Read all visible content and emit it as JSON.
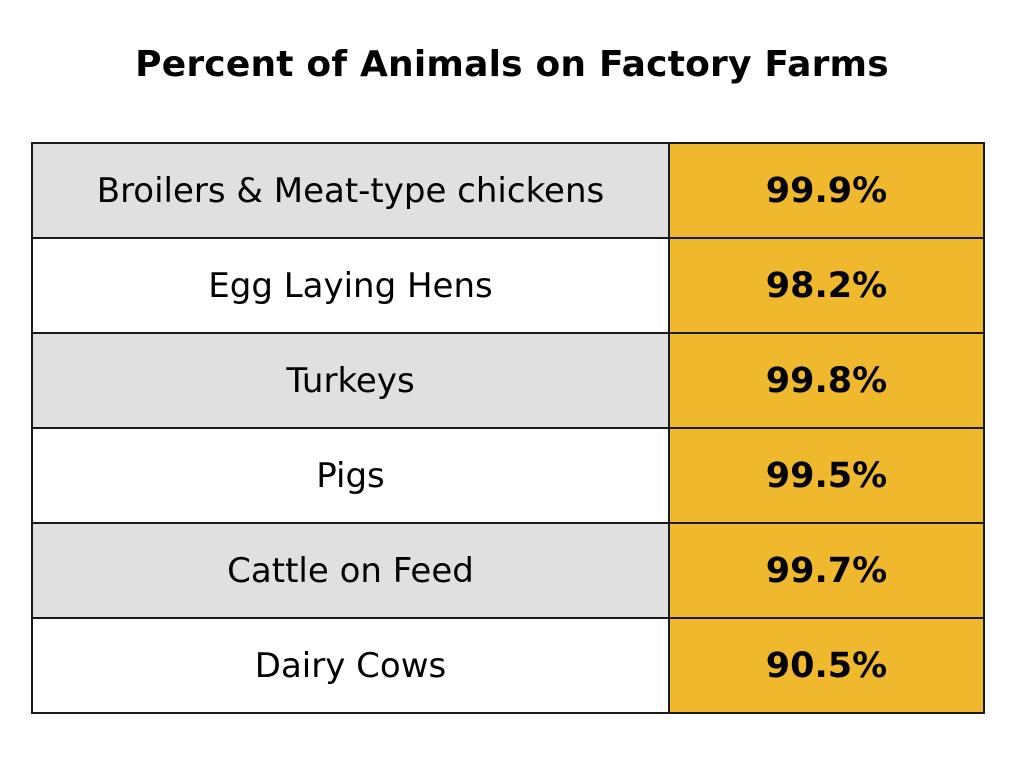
{
  "chart_data": {
    "type": "table",
    "title": "Percent of Animals on Factory Farms",
    "categories": [
      "Broilers & Meat-type chickens",
      "Egg Laying Hens",
      "Turkeys",
      "Pigs",
      "Cattle on Feed",
      "Dairy Cows"
    ],
    "display_values": [
      "99.9%",
      "98.2%",
      "99.8%",
      "99.5%",
      "99.7%",
      "90.5%"
    ],
    "values": [
      99.9,
      98.2,
      99.8,
      99.5,
      99.7,
      90.5
    ],
    "unit": "%"
  },
  "colors": {
    "value_column": "#f0b92d",
    "shaded_row": "#e0e0e0",
    "plain_row": "#ffffff",
    "border": "#1a1a1a"
  }
}
